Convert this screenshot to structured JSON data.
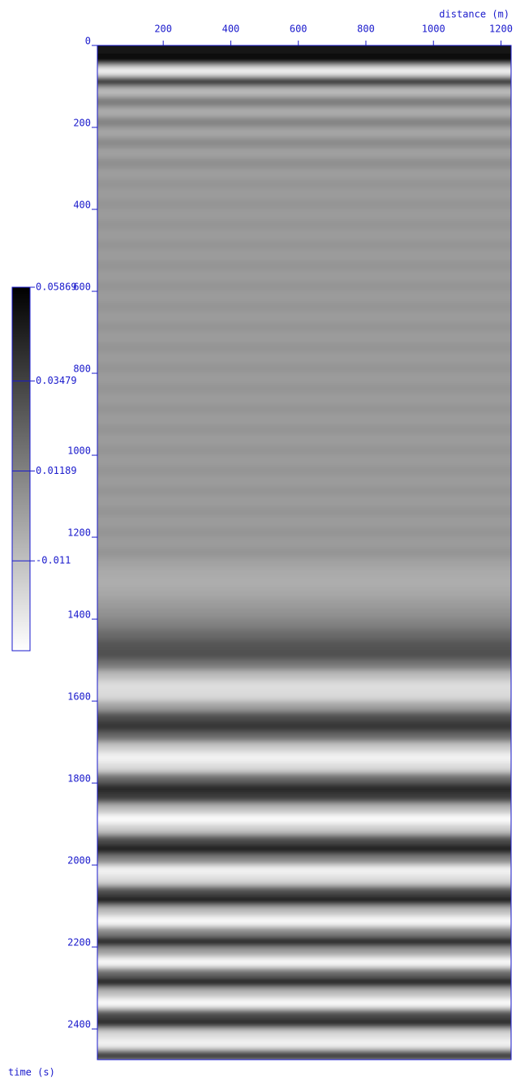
{
  "chart_data": {
    "type": "image",
    "x_label": "distance (m)",
    "y_label": "time (s)",
    "xlim": [
      5,
      1230
    ],
    "xticks": [
      200,
      400,
      600,
      800,
      1000,
      1200
    ],
    "ylim": [
      0,
      2475
    ],
    "yticks": [
      0,
      200,
      400,
      600,
      800,
      1000,
      1200,
      1400,
      1600,
      1800,
      2000,
      2200,
      2400
    ],
    "colormap": "gray",
    "times": [
      0,
      25,
      50,
      75,
      100,
      125,
      150,
      175,
      200,
      225,
      250,
      275,
      300,
      325,
      350,
      375,
      400,
      425,
      450,
      475,
      500,
      525,
      550,
      575,
      600,
      625,
      650,
      675,
      700,
      725,
      750,
      775,
      800,
      825,
      850,
      875,
      900,
      925,
      950,
      975,
      1000,
      1025,
      1050,
      1075,
      1100,
      1125,
      1150,
      1175,
      1200,
      1225,
      1250,
      1275,
      1300,
      1325,
      1350,
      1375,
      1400,
      1425,
      1450,
      1475,
      1500,
      1525,
      1550,
      1575,
      1600,
      1625,
      1650,
      1675,
      1700,
      1725,
      1750,
      1775,
      1800,
      1825,
      1850,
      1875,
      1900,
      1925,
      1950,
      1975,
      2000,
      2025,
      2050,
      2075,
      2100,
      2125,
      2150,
      2175,
      2200,
      2225,
      2250,
      2275,
      2300,
      2325,
      2350,
      2375,
      2400,
      2425,
      2450
    ],
    "values": [
      0.05,
      0.058,
      -0.03,
      0.05,
      -0.01,
      0.015,
      -0.005,
      0.012,
      -0.002,
      0.009,
      0.0,
      0.007,
      0.001,
      0.005,
      0.002,
      0.005,
      0.002,
      0.005,
      0.002,
      0.005,
      0.002,
      0.005,
      0.002,
      0.005,
      0.002,
      0.005,
      0.002,
      0.005,
      0.002,
      0.005,
      0.002,
      0.005,
      0.002,
      0.005,
      0.002,
      0.005,
      0.002,
      0.005,
      0.002,
      0.005,
      0.002,
      0.005,
      0.002,
      0.005,
      0.002,
      0.005,
      0.002,
      0.005,
      0.002,
      0.005,
      0.0,
      -0.003,
      -0.004,
      -0.002,
      0.002,
      0.006,
      0.012,
      0.02,
      0.028,
      0.03,
      0.015,
      -0.01,
      -0.022,
      -0.02,
      0.0,
      0.03,
      0.04,
      0.02,
      -0.015,
      -0.03,
      -0.02,
      0.02,
      0.045,
      0.035,
      -0.01,
      -0.033,
      -0.015,
      0.03,
      0.05,
      0.01,
      -0.03,
      -0.02,
      0.03,
      0.05,
      -0.01,
      -0.033,
      0.01,
      0.05,
      0.0,
      -0.033,
      0.02,
      0.05,
      -0.01,
      -0.033,
      0.03,
      0.045,
      -0.02,
      -0.03,
      0.04
    ],
    "colorbar": {
      "clim": [
        -0.0339,
        0.05869
      ],
      "ticks": [
        0.05869,
        0.03479,
        0.01189,
        -0.011
      ]
    }
  }
}
